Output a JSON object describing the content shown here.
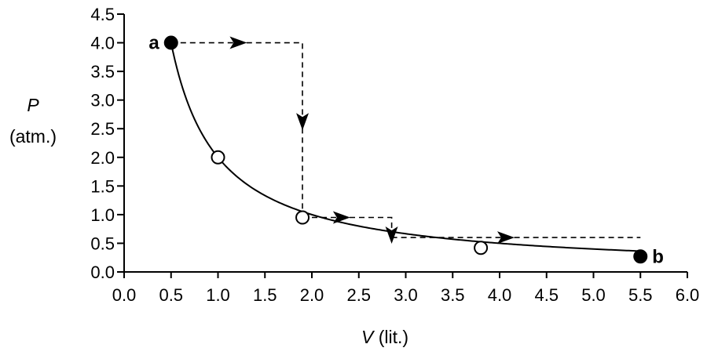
{
  "chart_data": {
    "type": "line",
    "xlabel": {
      "var": "V",
      "unit": " (lit.)"
    },
    "ylabel": {
      "var": "P",
      "unit": "(atm.)"
    },
    "xlim": [
      0.0,
      6.0
    ],
    "ylim": [
      0.0,
      4.5
    ],
    "x_ticks": [
      "0.0",
      "0.5",
      "1.0",
      "1.5",
      "2.0",
      "2.5",
      "3.0",
      "3.5",
      "4.0",
      "4.5",
      "5.0",
      "5.5",
      "6.0"
    ],
    "y_ticks": [
      "0.0",
      "0.5",
      "1.0",
      "1.5",
      "2.0",
      "2.5",
      "3.0",
      "3.5",
      "4.0",
      "4.5"
    ],
    "grid": false,
    "isotherm": {
      "kind": "hyperbola",
      "PV_product": 2.0,
      "x_range": [
        0.5,
        5.5
      ]
    },
    "points": [
      {
        "label": "a",
        "x": 0.5,
        "y": 4.0,
        "filled": true
      },
      {
        "label": "",
        "x": 1.0,
        "y": 2.0,
        "filled": false
      },
      {
        "label": "",
        "x": 1.9,
        "y": 0.95,
        "filled": false
      },
      {
        "label": "",
        "x": 3.8,
        "y": 0.42,
        "filled": false
      },
      {
        "label": "b",
        "x": 5.5,
        "y": 0.27,
        "filled": true
      }
    ],
    "dashed_paths": [
      {
        "points": [
          [
            0.5,
            4.0
          ],
          [
            1.9,
            4.0
          ],
          [
            1.9,
            0.95
          ]
        ],
        "arrows": [
          [
            1.2,
            4.0,
            "right"
          ],
          [
            1.9,
            2.65,
            "down"
          ]
        ]
      },
      {
        "points": [
          [
            1.9,
            0.95
          ],
          [
            2.85,
            0.95
          ],
          [
            2.85,
            0.6
          ]
        ],
        "arrows": [
          [
            2.3,
            0.95,
            "right"
          ],
          [
            2.85,
            0.67,
            "down"
          ]
        ]
      },
      {
        "points": [
          [
            2.85,
            0.6
          ],
          [
            5.5,
            0.6
          ]
        ],
        "arrows": [
          [
            4.05,
            0.6,
            "right"
          ]
        ]
      }
    ]
  }
}
